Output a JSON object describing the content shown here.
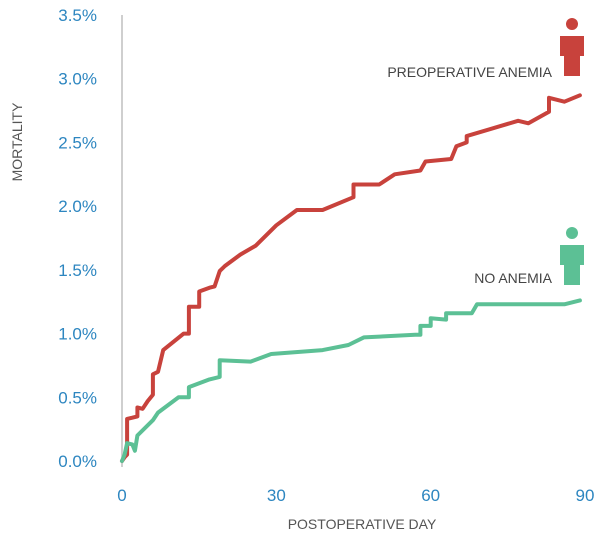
{
  "chart_data": {
    "type": "line",
    "xlabel": "POSTOPERATIVE DAY",
    "ylabel": "MORTALITY",
    "xlim": [
      0,
      90
    ],
    "ylim": [
      0,
      3.5
    ],
    "x_ticks": [
      0,
      30,
      60,
      90
    ],
    "y_ticks": [
      0,
      0.5,
      1.0,
      1.5,
      2.0,
      2.5,
      3.0,
      3.5
    ],
    "y_tick_labels": [
      "0.0%",
      "0.5%",
      "1.0%",
      "1.5%",
      "2.0%",
      "2.5%",
      "3.0%",
      "3.5%"
    ],
    "y_unit": "%",
    "grid": false,
    "series": [
      {
        "name": "PREOPERATIVE ANEMIA",
        "color": "#c8423c",
        "icon": "person-icon",
        "points": [
          [
            0,
            0
          ],
          [
            0.5,
            0.03
          ],
          [
            1,
            0.05
          ],
          [
            1,
            0.33
          ],
          [
            2,
            0.34
          ],
          [
            3,
            0.35
          ],
          [
            3,
            0.42
          ],
          [
            4,
            0.41
          ],
          [
            5,
            0.47
          ],
          [
            6,
            0.52
          ],
          [
            6,
            0.68
          ],
          [
            7,
            0.7
          ],
          [
            8,
            0.87
          ],
          [
            12,
            1.0
          ],
          [
            13,
            1.0
          ],
          [
            13,
            1.21
          ],
          [
            15,
            1.21
          ],
          [
            15,
            1.33
          ],
          [
            17,
            1.36
          ],
          [
            18,
            1.37
          ],
          [
            19,
            1.49
          ],
          [
            20,
            1.53
          ],
          [
            23,
            1.62
          ],
          [
            26,
            1.69
          ],
          [
            30,
            1.85
          ],
          [
            34,
            1.97
          ],
          [
            39,
            1.97
          ],
          [
            45,
            2.07
          ],
          [
            45,
            2.17
          ],
          [
            50,
            2.17
          ],
          [
            53,
            2.25
          ],
          [
            58,
            2.28
          ],
          [
            59,
            2.35
          ],
          [
            64,
            2.37
          ],
          [
            65,
            2.47
          ],
          [
            67,
            2.5
          ],
          [
            67,
            2.55
          ],
          [
            77,
            2.67
          ],
          [
            79,
            2.65
          ],
          [
            83,
            2.74
          ],
          [
            83,
            2.85
          ],
          [
            86,
            2.82
          ],
          [
            89,
            2.87
          ]
        ]
      },
      {
        "name": "NO ANEMIA",
        "color": "#5cc095",
        "icon": "person-icon",
        "points": [
          [
            0,
            0
          ],
          [
            0.5,
            0.05
          ],
          [
            1,
            0.14
          ],
          [
            2,
            0.13
          ],
          [
            2.5,
            0.08
          ],
          [
            3,
            0.2
          ],
          [
            6,
            0.32
          ],
          [
            7,
            0.38
          ],
          [
            10,
            0.47
          ],
          [
            11,
            0.5
          ],
          [
            13,
            0.5
          ],
          [
            13,
            0.58
          ],
          [
            17,
            0.64
          ],
          [
            19,
            0.66
          ],
          [
            19,
            0.79
          ],
          [
            25,
            0.78
          ],
          [
            29,
            0.84
          ],
          [
            39,
            0.87
          ],
          [
            44,
            0.91
          ],
          [
            47,
            0.97
          ],
          [
            57,
            0.99
          ],
          [
            58,
            0.99
          ],
          [
            58,
            1.06
          ],
          [
            60,
            1.06
          ],
          [
            60,
            1.12
          ],
          [
            63,
            1.11
          ],
          [
            63,
            1.16
          ],
          [
            68,
            1.16
          ],
          [
            69,
            1.23
          ],
          [
            86,
            1.23
          ],
          [
            89,
            1.26
          ]
        ]
      }
    ]
  }
}
